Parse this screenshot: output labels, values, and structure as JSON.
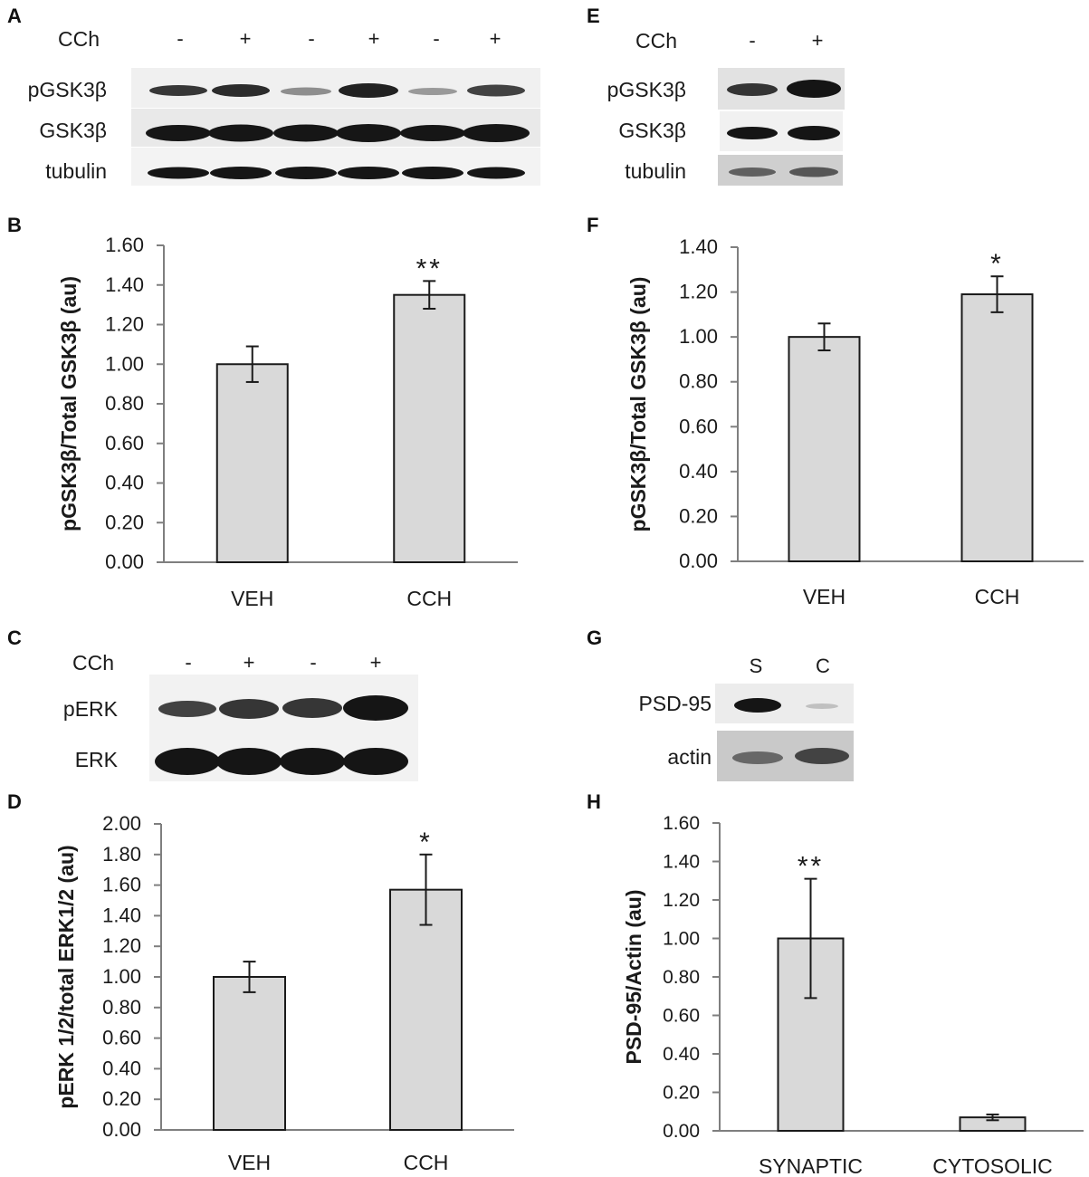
{
  "panels": {
    "A": {
      "letter": "A",
      "condition_label": "CCh",
      "lanes": [
        "-",
        "+",
        "-",
        "+",
        "-",
        "+"
      ],
      "rows": [
        "pGSK3β",
        "GSK3β",
        "tubulin"
      ]
    },
    "C": {
      "letter": "C",
      "condition_label": "CCh",
      "lanes": [
        "-",
        "+",
        "-",
        "+"
      ],
      "rows": [
        "pERK",
        "ERK"
      ]
    },
    "E": {
      "letter": "E",
      "condition_label": "CCh",
      "lanes": [
        "-",
        "+"
      ],
      "rows": [
        "pGSK3β",
        "GSK3β",
        "tubulin"
      ]
    },
    "G": {
      "letter": "G",
      "lanes": [
        "S",
        "C"
      ],
      "rows": [
        "PSD-95",
        "actin"
      ]
    }
  },
  "chart_data": [
    {
      "panel": "B",
      "type": "bar",
      "ylabel": "pGSK3β/Total GSK3β (au)",
      "categories": [
        "VEH",
        "CCH"
      ],
      "values": [
        1.0,
        1.35
      ],
      "errors": [
        0.09,
        0.07
      ],
      "significance": [
        "",
        "**"
      ],
      "ylim": [
        0,
        1.6
      ],
      "yticks": [
        "0.00",
        "0.20",
        "0.40",
        "0.60",
        "0.80",
        "1.00",
        "1.20",
        "1.40",
        "1.60"
      ]
    },
    {
      "panel": "D",
      "type": "bar",
      "ylabel": "pERK 1/2/total ERK1/2 (au)",
      "categories": [
        "VEH",
        "CCH"
      ],
      "values": [
        1.0,
        1.57
      ],
      "errors": [
        0.1,
        0.23
      ],
      "significance": [
        "",
        "*"
      ],
      "ylim": [
        0,
        2.0
      ],
      "yticks": [
        "0.00",
        "0.20",
        "0.40",
        "0.60",
        "0.80",
        "1.00",
        "1.20",
        "1.40",
        "1.60",
        "1.80",
        "2.00"
      ]
    },
    {
      "panel": "F",
      "type": "bar",
      "ylabel": "pGSK3β/Total GSK3β (au)",
      "categories": [
        "VEH",
        "CCH"
      ],
      "values": [
        1.0,
        1.19
      ],
      "errors": [
        0.06,
        0.08
      ],
      "significance": [
        "",
        "*"
      ],
      "ylim": [
        0,
        1.4
      ],
      "yticks": [
        "0.00",
        "0.20",
        "0.40",
        "0.60",
        "0.80",
        "1.00",
        "1.20",
        "1.40"
      ]
    },
    {
      "panel": "H",
      "type": "bar",
      "ylabel": "PSD-95/Actin (au)",
      "categories": [
        "SYNAPTIC",
        "CYTOSOLIC"
      ],
      "values": [
        1.0,
        0.07
      ],
      "errors": [
        0.31,
        0.015
      ],
      "significance": [
        "**",
        ""
      ],
      "ylim": [
        0,
        1.6
      ],
      "yticks": [
        "0.00",
        "0.20",
        "0.40",
        "0.60",
        "0.80",
        "1.00",
        "1.20",
        "1.40",
        "1.60"
      ]
    }
  ],
  "colors": {
    "bar_fill": "#d9d9d9",
    "bar_stroke": "#1a1a1a",
    "axis": "#7f7f7f",
    "error_bar": "#1a1a1a",
    "band": "#101010"
  }
}
